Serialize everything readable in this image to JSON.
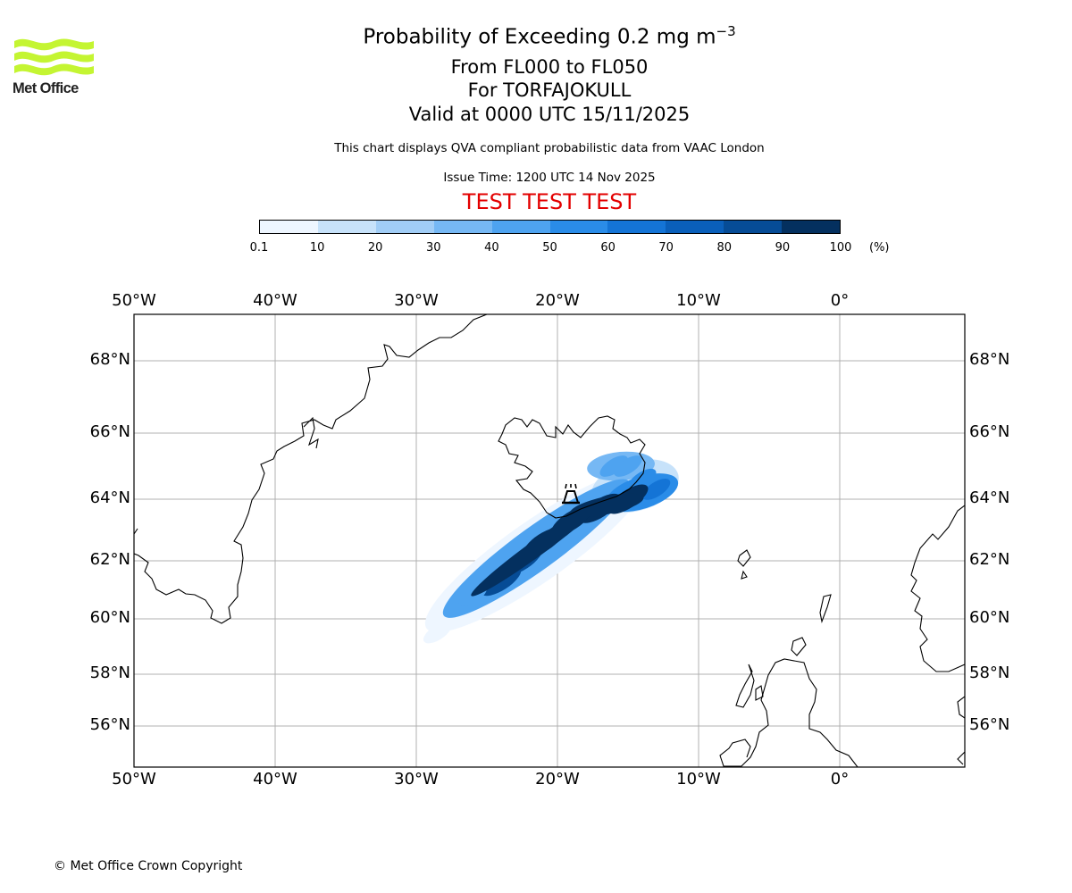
{
  "logo": {
    "text": "Met Office",
    "color": "#c4f532"
  },
  "header": {
    "title_main": "Probability of Exceeding 0.2 mg m",
    "title_sup": "−3",
    "line2": "From FL000 to FL050",
    "line3": "For TORFAJOKULL",
    "line4": "Valid at 0000 UTC 15/11/2025",
    "subtitle": "This chart displays QVA compliant probabilistic data from VAAC London",
    "issue_time": "Issue Time: 1200 UTC 14 Nov 2025",
    "test_banner": "TEST TEST TEST",
    "test_color": "#e30000"
  },
  "legend": {
    "ticks": [
      "0.1",
      "10",
      "20",
      "30",
      "40",
      "50",
      "60",
      "70",
      "80",
      "90",
      "100"
    ],
    "units": "(%)",
    "colors": [
      "#eef6ff",
      "#c7e2fa",
      "#a1cdf6",
      "#76b8f4",
      "#4ea3f0",
      "#2a8ce8",
      "#1474d6",
      "#0a5fba",
      "#064c96",
      "#04305f"
    ]
  },
  "map": {
    "lon_labels": [
      "50°W",
      "40°W",
      "30°W",
      "20°W",
      "10°W",
      "0°"
    ],
    "lat_labels": [
      "68°N",
      "66°N",
      "64°N",
      "62°N",
      "60°N",
      "58°N",
      "56°N"
    ],
    "volcano_name": "TORFAJOKULL"
  },
  "chart_data": {
    "type": "heatmap",
    "title": "Probability of Exceeding 0.2 mg m−3",
    "variable": "Probability (%)",
    "levels": [
      0.1,
      10,
      20,
      30,
      40,
      50,
      60,
      70,
      80,
      90,
      100
    ],
    "lon_range": [
      -50,
      8.7
    ],
    "lat_range": [
      54.7,
      69.5
    ],
    "plume_cells": [
      {
        "lon": -16.0,
        "lat": 65.0,
        "value": 45
      },
      {
        "lon": -15.0,
        "lat": 65.0,
        "value": 45
      },
      {
        "lon": -14.0,
        "lat": 64.6,
        "value": 55
      },
      {
        "lon": -13.0,
        "lat": 64.3,
        "value": 60
      },
      {
        "lon": -15.0,
        "lat": 64.0,
        "value": 95
      },
      {
        "lon": -17.0,
        "lat": 63.7,
        "value": 95
      },
      {
        "lon": -19.0,
        "lat": 63.3,
        "value": 90
      },
      {
        "lon": -21.0,
        "lat": 62.6,
        "value": 90
      },
      {
        "lon": -22.5,
        "lat": 62.0,
        "value": 85
      },
      {
        "lon": -24.0,
        "lat": 61.3,
        "value": 80
      },
      {
        "lon": -26.0,
        "lat": 60.8,
        "value": 40
      },
      {
        "lon": -28.5,
        "lat": 59.5,
        "value": 5
      }
    ]
  },
  "footer": {
    "copyright": "© Met Office Crown Copyright"
  }
}
